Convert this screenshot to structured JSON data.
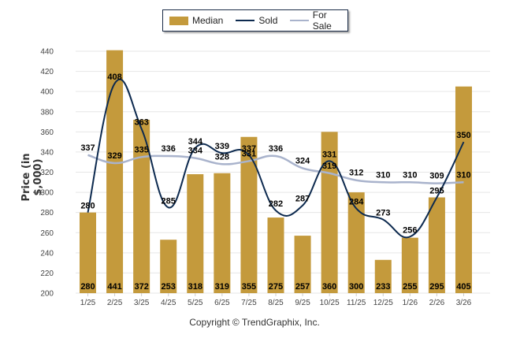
{
  "legend": {
    "items": [
      {
        "label": "Median",
        "color": "#C49A3C",
        "kind": "bar"
      },
      {
        "label": "Sold",
        "color": "#0D2A4F",
        "kind": "line"
      },
      {
        "label": "For Sale",
        "color": "#A9B3CC",
        "kind": "line"
      }
    ]
  },
  "footer": "Copyright © TrendGraphix, Inc.",
  "chart_data": {
    "type": "bar",
    "title": "",
    "xlabel": "",
    "ylabel": "Price (in $,000)",
    "ylim": [
      200,
      440
    ],
    "yticks": [
      200,
      220,
      240,
      260,
      280,
      300,
      320,
      340,
      360,
      380,
      400,
      420,
      440
    ],
    "grid": true,
    "legend_position": "top-center",
    "categories": [
      "1/25",
      "2/25",
      "3/25",
      "4/25",
      "5/25",
      "6/25",
      "7/25",
      "8/25",
      "9/25",
      "10/25",
      "11/25",
      "12/25",
      "1/26",
      "2/26",
      "3/26"
    ],
    "series": [
      {
        "name": "Median",
        "type": "bar",
        "color": "#C49A3C",
        "values": [
          280,
          441,
          372,
          253,
          318,
          319,
          355,
          275,
          257,
          360,
          300,
          233,
          255,
          295,
          405
        ]
      },
      {
        "name": "Sold",
        "type": "line",
        "color": "#0D2A4F",
        "values": [
          280,
          408,
          363,
          285,
          344,
          339,
          337,
          282,
          287,
          331,
          284,
          273,
          256,
          295,
          350
        ]
      },
      {
        "name": "For Sale",
        "type": "line",
        "color": "#A9B3CC",
        "values": [
          337,
          329,
          335,
          336,
          334,
          328,
          331,
          336,
          324,
          319,
          312,
          310,
          310,
          309,
          310
        ]
      }
    ]
  }
}
